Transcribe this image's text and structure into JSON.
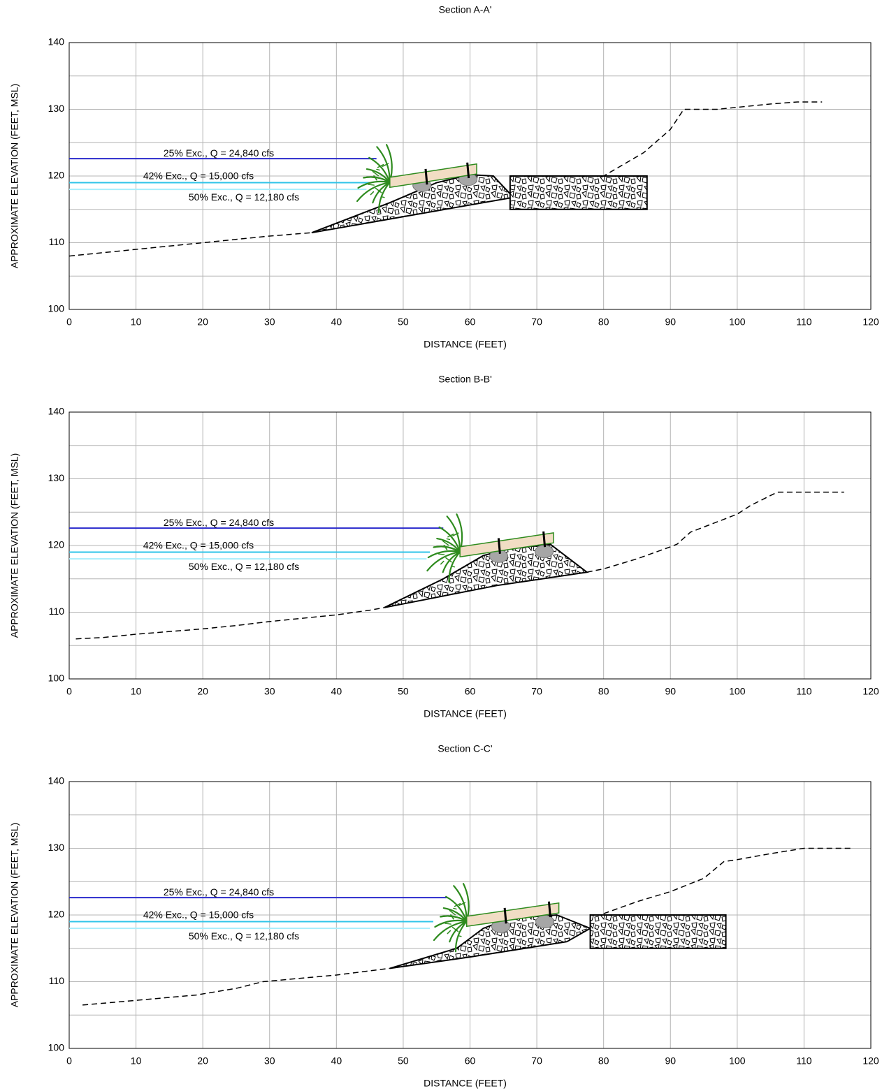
{
  "chart_data": [
    {
      "type": "line",
      "title": "Section A-A'",
      "xlabel": "DISTANCE (FEET)",
      "ylabel": "APPROXIMATE ELEVATION (FEET, MSL)",
      "xlim": [
        0,
        120
      ],
      "ylim": [
        100,
        140
      ],
      "xticks": [
        0,
        10,
        20,
        30,
        40,
        50,
        60,
        70,
        80,
        90,
        100,
        110,
        120
      ],
      "yticks": [
        100,
        110,
        120,
        130,
        140
      ],
      "yminor": [
        105,
        115,
        125,
        135
      ],
      "grid": true,
      "series": [
        {
          "x": [
            0,
            10,
            20,
            30,
            36.3,
            50,
            66.5,
            75,
            80,
            86,
            90,
            92,
            97,
            100,
            105,
            109,
            112.7
          ],
          "values": [
            108,
            109,
            110,
            111,
            111.5,
            null,
            116.8,
            118.3,
            120,
            123.5,
            127,
            130,
            130,
            130.3,
            130.8,
            131.1,
            131.1
          ],
          "color": "#000000",
          "dashed": true
        },
        {
          "name": "25% Exc., Q = 24,840 cfs",
          "x": [
            0,
            46
          ],
          "values": [
            122.6,
            122.6
          ],
          "color": "#2a2acc"
        },
        {
          "name": "42% Exc., Q = 15,000 cfs",
          "x": [
            0,
            45
          ],
          "values": [
            119,
            119
          ],
          "color": "#2fc4e8"
        },
        {
          "name": "50% Exc., Q = 12,180 cfs",
          "x": [
            0,
            44.5
          ],
          "values": [
            118,
            118
          ],
          "color": "#a8eefc"
        }
      ],
      "shapes": [
        {
          "kind": "riprap",
          "x": [
            36.3,
            48,
            55,
            60,
            63.5,
            66.5,
            36.3
          ],
          "values": [
            111.5,
            116,
            119,
            120.2,
            120,
            116.8,
            111.5
          ]
        },
        {
          "kind": "riprap",
          "x": [
            66,
            86.5,
            86.5,
            66
          ],
          "values": [
            115,
            115,
            120,
            120
          ]
        },
        {
          "kind": "log",
          "x": [
            48,
            61,
            61,
            48
          ],
          "values": [
            118.3,
            120.3,
            121.8,
            119.8
          ]
        }
      ],
      "boulders": {
        "x": [
          52.8,
          59.7
        ],
        "values": [
          118.6,
          119.5
        ]
      }
    },
    {
      "type": "line",
      "title": "Section B-B'",
      "xlabel": "DISTANCE (FEET)",
      "ylabel": "APPROXIMATE ELEVATION (FEET, MSL)",
      "xlim": [
        0,
        120
      ],
      "ylim": [
        100,
        140
      ],
      "xticks": [
        0,
        10,
        20,
        30,
        40,
        50,
        60,
        70,
        80,
        90,
        100,
        110,
        120
      ],
      "yticks": [
        100,
        110,
        120,
        130,
        140
      ],
      "yminor": [
        105,
        115,
        125,
        135
      ],
      "grid": true,
      "series": [
        {
          "x": [
            1,
            5,
            10,
            20,
            25,
            30,
            40,
            45,
            47.2,
            60,
            77.5,
            80,
            85,
            90,
            91,
            93,
            100,
            102,
            106,
            110,
            116
          ],
          "values": [
            106,
            106.2,
            106.7,
            107.5,
            108,
            108.6,
            109.6,
            110.3,
            110.7,
            null,
            116,
            116.5,
            118,
            119.8,
            120.2,
            122,
            124.7,
            126,
            128,
            128,
            128
          ],
          "color": "#000000",
          "dashed": true
        },
        {
          "name": "25% Exc., Q = 24,840 cfs",
          "x": [
            0,
            56
          ],
          "values": [
            122.6,
            122.6
          ],
          "color": "#2a2acc"
        },
        {
          "name": "42% Exc., Q = 15,000 cfs",
          "x": [
            0,
            54
          ],
          "values": [
            119,
            119
          ],
          "color": "#2fc4e8"
        },
        {
          "name": "50% Exc., Q = 12,180 cfs",
          "x": [
            0,
            53.5
          ],
          "values": [
            118,
            118
          ],
          "color": "#a8eefc"
        }
      ],
      "shapes": [
        {
          "kind": "riprap",
          "x": [
            47.2,
            56,
            62,
            66,
            72,
            77.5,
            64,
            47.2
          ],
          "values": [
            110.7,
            115,
            118.5,
            119.5,
            120.2,
            116,
            114,
            110.7
          ]
        },
        {
          "kind": "log",
          "x": [
            58.5,
            72.5,
            72.5,
            58.5
          ],
          "values": [
            118.3,
            120.4,
            121.9,
            119.8
          ]
        }
      ],
      "boulders": {
        "x": [
          64.3,
          71.1
        ],
        "values": [
          118.4,
          119.1
        ]
      }
    },
    {
      "type": "line",
      "title": "Section C-C'",
      "xlabel": "DISTANCE (FEET)",
      "ylabel": "APPROXIMATE ELEVATION (FEET, MSL)",
      "xlim": [
        0,
        120
      ],
      "ylim": [
        100,
        140
      ],
      "xticks": [
        0,
        10,
        20,
        30,
        40,
        50,
        60,
        70,
        80,
        90,
        100,
        110,
        120
      ],
      "yticks": [
        100,
        110,
        120,
        130,
        140
      ],
      "yminor": [
        105,
        115,
        125,
        135
      ],
      "grid": true,
      "series": [
        {
          "x": [
            2,
            10,
            19,
            25,
            29,
            40,
            48,
            60,
            80,
            85,
            90,
            95,
            98,
            100,
            105,
            110,
            117
          ],
          "values": [
            106.5,
            107.2,
            108,
            109,
            110,
            111,
            112,
            null,
            120.2,
            122,
            123.5,
            125.5,
            128,
            128.3,
            129.2,
            130,
            130
          ],
          "color": "#000000",
          "dashed": true
        },
        {
          "name": "25% Exc., Q = 24,840 cfs",
          "x": [
            0,
            56.5
          ],
          "values": [
            122.6,
            122.6
          ],
          "color": "#2a2acc"
        },
        {
          "name": "42% Exc., Q = 15,000 cfs",
          "x": [
            0,
            54.5
          ],
          "values": [
            119,
            119
          ],
          "color": "#2fc4e8"
        },
        {
          "name": "50% Exc., Q = 12,180 cfs",
          "x": [
            0,
            54
          ],
          "values": [
            118,
            118
          ],
          "color": "#a8eefc"
        }
      ],
      "shapes": [
        {
          "kind": "riprap",
          "x": [
            48,
            58,
            62,
            66,
            73,
            78,
            74.5,
            60,
            48
          ],
          "values": [
            112,
            115,
            118,
            119.5,
            120,
            118,
            116,
            113.7,
            112
          ]
        },
        {
          "kind": "riprap",
          "x": [
            78,
            98.3,
            98.3,
            78
          ],
          "values": [
            115,
            115,
            120,
            120
          ]
        },
        {
          "kind": "log",
          "x": [
            59.5,
            73.3,
            73.3,
            59.5
          ],
          "values": [
            118.3,
            120.3,
            121.8,
            119.8
          ]
        }
      ],
      "boulders": {
        "x": [
          64.6,
          71.2
        ],
        "values": [
          118.3,
          119
        ]
      }
    }
  ]
}
